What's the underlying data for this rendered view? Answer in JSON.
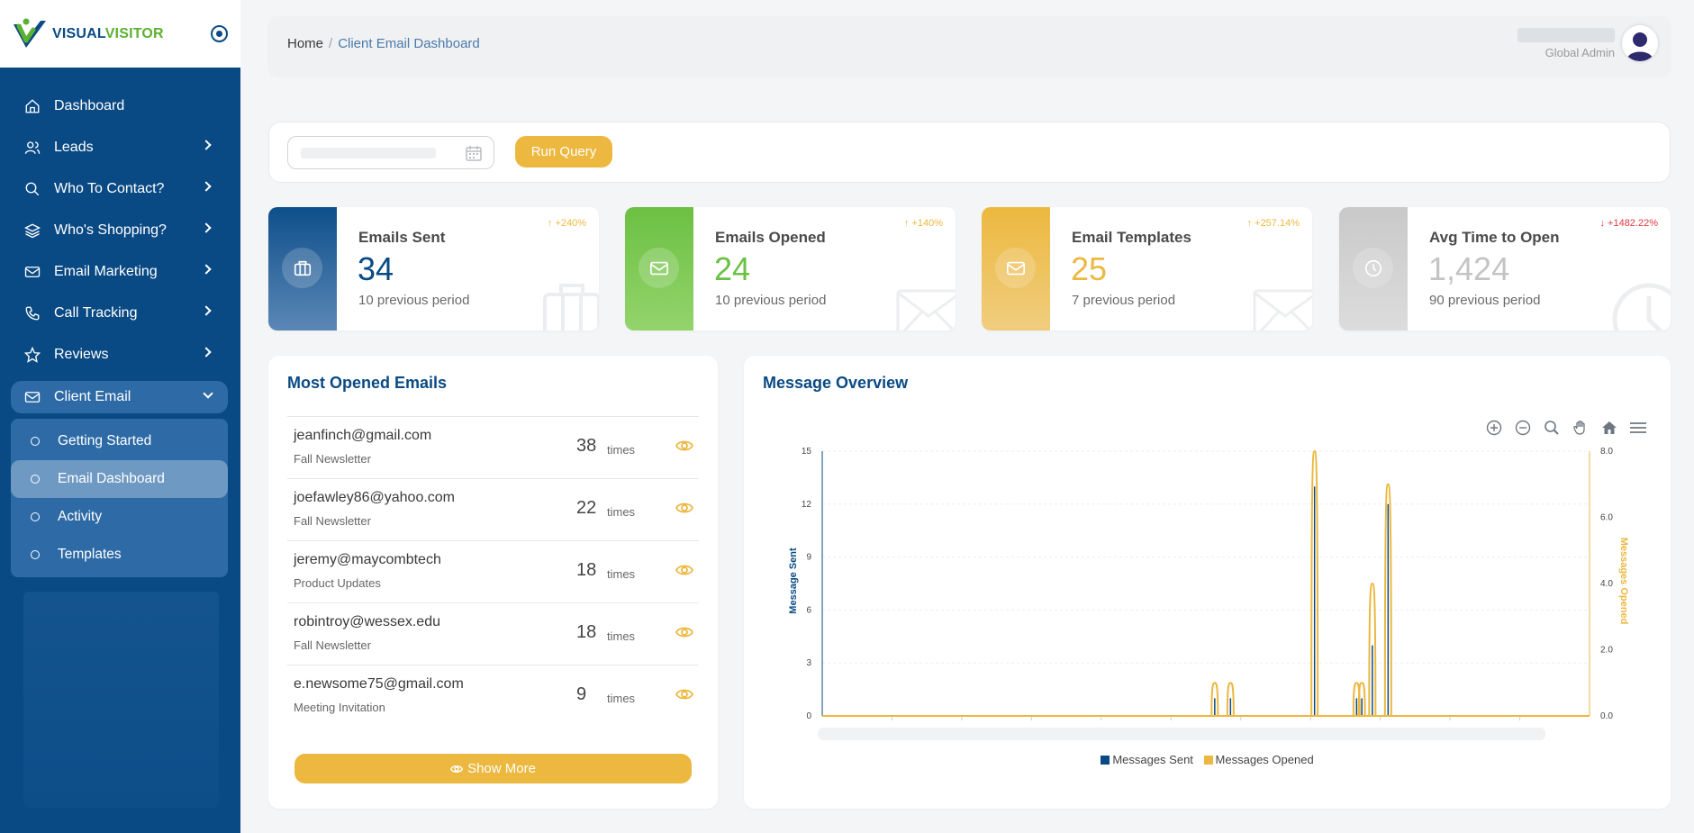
{
  "brand": {
    "name_part1": "VISUAL",
    "name_part2": "VISITOR"
  },
  "sidebar": {
    "items": [
      {
        "label": "Dashboard",
        "icon": "home-icon",
        "has_children": false
      },
      {
        "label": "Leads",
        "icon": "users-icon",
        "has_children": true
      },
      {
        "label": "Who To Contact?",
        "icon": "search-icon",
        "has_children": true
      },
      {
        "label": "Who's Shopping?",
        "icon": "layers-icon",
        "has_children": true
      },
      {
        "label": "Email Marketing",
        "icon": "mail-icon",
        "has_children": true
      },
      {
        "label": "Call Tracking",
        "icon": "phone-icon",
        "has_children": true
      },
      {
        "label": "Reviews",
        "icon": "star-icon",
        "has_children": true
      },
      {
        "label": "Client Email",
        "icon": "mail-icon",
        "has_children": true,
        "expanded": true
      }
    ],
    "submenu": [
      {
        "label": "Getting Started"
      },
      {
        "label": "Email Dashboard",
        "selected": true
      },
      {
        "label": "Activity"
      },
      {
        "label": "Templates"
      }
    ]
  },
  "header": {
    "breadcrumb_home": "Home",
    "breadcrumb_sep": "/",
    "breadcrumb_current": "Client Email Dashboard",
    "user_role": "Global Admin"
  },
  "query": {
    "run_label": "Run Query"
  },
  "stats": [
    {
      "label": "Emails Sent",
      "value": "34",
      "previous": "10 previous period",
      "delta": "+240%",
      "direction": "up",
      "icon": "briefcase-icon"
    },
    {
      "label": "Emails Opened",
      "value": "24",
      "previous": "10 previous period",
      "delta": "+140%",
      "direction": "up",
      "icon": "mail-icon"
    },
    {
      "label": "Email Templates",
      "value": "25",
      "previous": "7 previous period",
      "delta": "+257.14%",
      "direction": "up",
      "icon": "mail-icon"
    },
    {
      "label": "Avg Time to Open",
      "value": "1,424",
      "previous": "90 previous period",
      "delta": "+1482.22%",
      "direction": "down",
      "icon": "clock-icon"
    }
  ],
  "most_opened": {
    "title": "Most Opened Emails",
    "times_label": "times",
    "rows": [
      {
        "email": "jeanfinch@gmail.com",
        "campaign": "Fall Newsletter",
        "count": "38"
      },
      {
        "email": "joefawley86@yahoo.com",
        "campaign": "Fall Newsletter",
        "count": "22"
      },
      {
        "email": "jeremy@maycombtech",
        "campaign": "Product Updates",
        "count": "18"
      },
      {
        "email": "robintroy@wessex.edu",
        "campaign": "Fall Newsletter",
        "count": "18"
      },
      {
        "email": "e.newsome75@gmail.com",
        "campaign": "Meeting Invitation",
        "count": "9"
      }
    ],
    "show_more_label": "Show More"
  },
  "overview": {
    "title": "Message Overview",
    "legend_sent": "Messages Sent",
    "legend_opened": "Messages Opened"
  },
  "colors": {
    "primary": "#0a4a84",
    "accent": "#ecb83f",
    "green": "#6cc043",
    "grey": "#c9c9c9",
    "danger": "#e0383e"
  },
  "chart_data": {
    "type": "area",
    "title": "Message Overview",
    "x_points": 72,
    "series": [
      {
        "name": "Messages Sent",
        "axis": "left",
        "color": "#0a4a84",
        "points": [
          [
            36.5,
            1
          ],
          [
            38,
            1
          ],
          [
            46,
            13
          ],
          [
            50,
            1
          ],
          [
            50.5,
            1
          ],
          [
            51.5,
            4
          ],
          [
            53,
            12
          ]
        ]
      },
      {
        "name": "Messages Opened",
        "axis": "right",
        "color": "#ecb83f",
        "points": [
          [
            36.5,
            1
          ],
          [
            38,
            1
          ],
          [
            46,
            8
          ],
          [
            50,
            1
          ],
          [
            50.5,
            1
          ],
          [
            51.5,
            4
          ],
          [
            53,
            7
          ]
        ]
      }
    ],
    "y_left": {
      "label": "Message Sent",
      "ticks": [
        "15",
        "12",
        "9",
        "6",
        "3",
        "0"
      ],
      "min": 0,
      "max": 15
    },
    "y_right": {
      "label": "Messages Opened",
      "ticks": [
        "8.0",
        "6.0",
        "4.0",
        "2.0",
        "0.0"
      ],
      "min": 0,
      "max": 8
    },
    "grid": true,
    "legend_position": "bottom"
  }
}
